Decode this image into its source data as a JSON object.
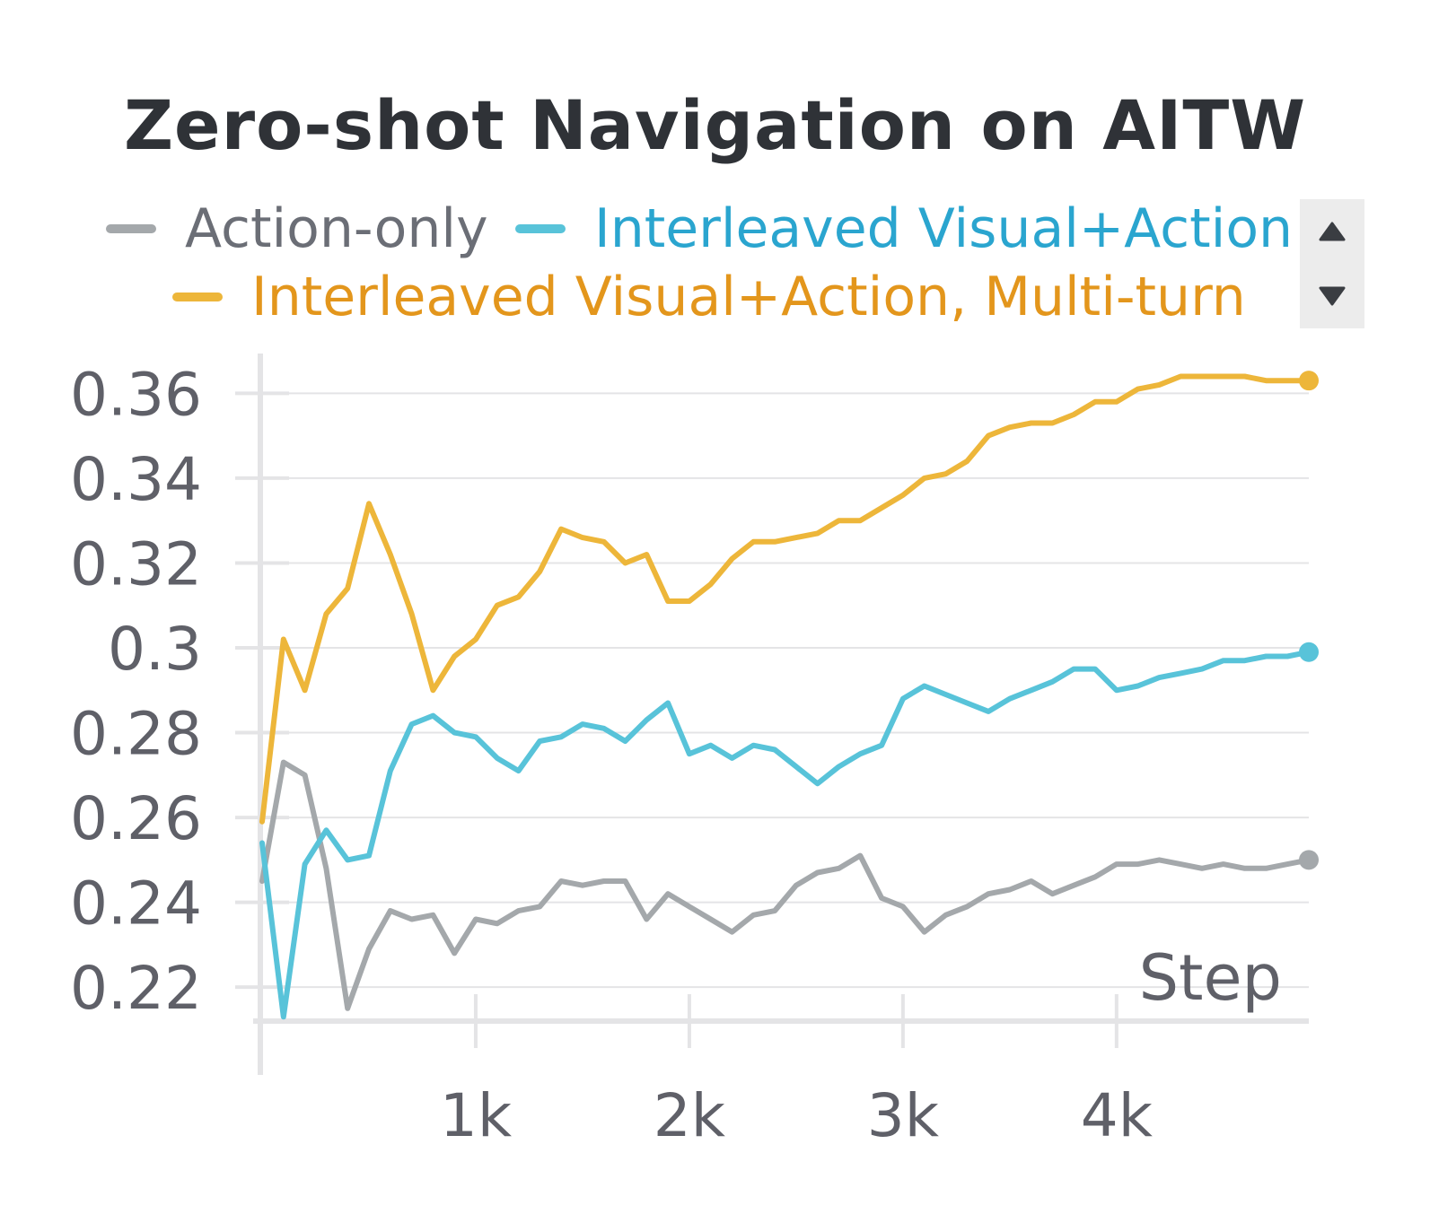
{
  "chart_data": {
    "type": "line",
    "title": "Zero-shot Navigation on AITW",
    "xlabel": "Step",
    "ylabel": "",
    "xlim": [
      0,
      4900
    ],
    "ylim": [
      0.212,
      0.366
    ],
    "xticks": [
      1000,
      2000,
      3000,
      4000
    ],
    "xtick_labels": [
      "1k",
      "2k",
      "3k",
      "4k"
    ],
    "yticks": [
      0.22,
      0.24,
      0.26,
      0.28,
      0.3,
      0.32,
      0.34,
      0.36
    ],
    "ytick_labels": [
      "0.22",
      "0.24",
      "0.26",
      "0.28",
      "0.3",
      "0.32",
      "0.34",
      "0.36"
    ],
    "grid": true,
    "legend": "top",
    "x": [
      0,
      100,
      200,
      300,
      400,
      500,
      600,
      700,
      800,
      900,
      1000,
      1100,
      1200,
      1300,
      1400,
      1500,
      1600,
      1700,
      1800,
      1900,
      2000,
      2100,
      2200,
      2300,
      2400,
      2500,
      2600,
      2700,
      2800,
      2900,
      3000,
      3100,
      3200,
      3300,
      3400,
      3500,
      3600,
      3700,
      3800,
      3900,
      4000,
      4100,
      4200,
      4300,
      4400,
      4500,
      4600,
      4700,
      4800,
      4900
    ],
    "series": [
      {
        "name": "Action-only",
        "color": "#a4a8ab",
        "values": [
          0.245,
          0.273,
          0.27,
          0.248,
          0.215,
          0.229,
          0.238,
          0.236,
          0.237,
          0.228,
          0.236,
          0.235,
          0.238,
          0.239,
          0.245,
          0.244,
          0.245,
          0.245,
          0.236,
          0.242,
          0.239,
          0.236,
          0.233,
          0.237,
          0.238,
          0.244,
          0.247,
          0.248,
          0.251,
          0.241,
          0.239,
          0.233,
          0.237,
          0.239,
          0.242,
          0.243,
          0.245,
          0.242,
          0.244,
          0.246,
          0.249,
          0.249,
          0.25,
          0.249,
          0.248,
          0.249,
          0.248,
          0.248,
          0.249,
          0.25
        ]
      },
      {
        "name": "Interleaved Visual+Action",
        "color": "#58c3d9",
        "values": [
          0.254,
          0.213,
          0.249,
          0.257,
          0.25,
          0.251,
          0.271,
          0.282,
          0.284,
          0.28,
          0.279,
          0.274,
          0.271,
          0.278,
          0.279,
          0.282,
          0.281,
          0.278,
          0.283,
          0.287,
          0.275,
          0.277,
          0.274,
          0.277,
          0.276,
          0.272,
          0.268,
          0.272,
          0.275,
          0.277,
          0.288,
          0.291,
          0.289,
          0.287,
          0.285,
          0.288,
          0.29,
          0.292,
          0.295,
          0.295,
          0.29,
          0.291,
          0.293,
          0.294,
          0.295,
          0.297,
          0.297,
          0.298,
          0.298,
          0.299
        ]
      },
      {
        "name": "Interleaved Visual+Action, Multi-turn",
        "color": "#edb63a",
        "values": [
          0.259,
          0.302,
          0.29,
          0.308,
          0.314,
          0.334,
          0.322,
          0.308,
          0.29,
          0.298,
          0.302,
          0.31,
          0.312,
          0.318,
          0.328,
          0.326,
          0.325,
          0.32,
          0.322,
          0.311,
          0.311,
          0.315,
          0.321,
          0.325,
          0.325,
          0.326,
          0.327,
          0.33,
          0.33,
          0.333,
          0.336,
          0.34,
          0.341,
          0.344,
          0.35,
          0.352,
          0.353,
          0.353,
          0.355,
          0.358,
          0.358,
          0.361,
          0.362,
          0.364,
          0.364,
          0.364,
          0.364,
          0.363,
          0.363,
          0.363
        ]
      }
    ]
  },
  "legend": {
    "items": [
      {
        "label": "Action-only",
        "line_color": "#a4a8ab",
        "text_color": "#6b6e76"
      },
      {
        "label": "Interleaved Visual+Action",
        "line_color": "#58c3d9",
        "text_color": "#2aa5cf"
      },
      {
        "label": "Interleaved Visual+Action, Multi-turn",
        "line_color": "#edb63a",
        "text_color": "#e3961c"
      }
    ],
    "scroll_up_icon": "triangle-up-icon",
    "scroll_down_icon": "triangle-down-icon"
  }
}
